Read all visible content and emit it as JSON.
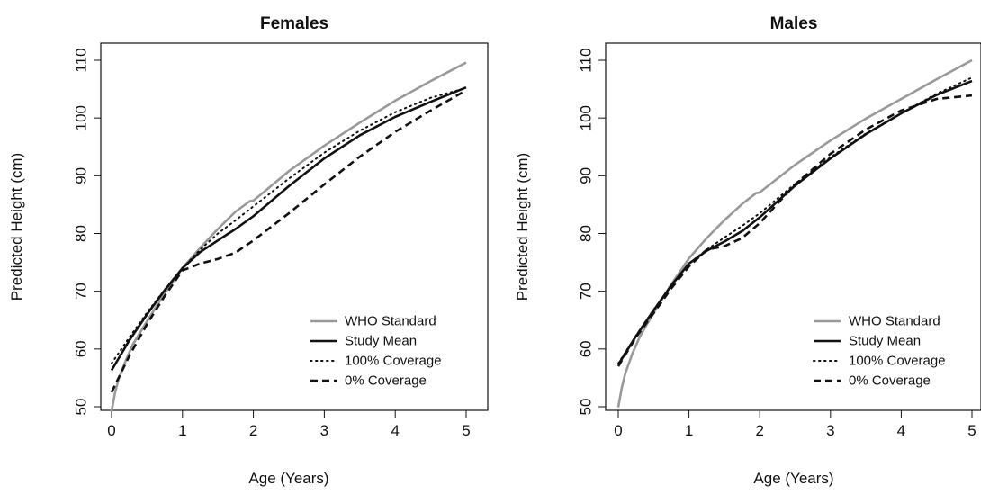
{
  "chart_data": [
    {
      "type": "line",
      "title": "Females",
      "xlabel": "Age (Years)",
      "ylabel": "Predicted Height (cm)",
      "xlim": [
        0,
        5
      ],
      "ylim": [
        48.5,
        111
      ],
      "x_ticks": [
        "0",
        "1",
        "2",
        "3",
        "4",
        "5"
      ],
      "y_ticks": [
        "50",
        "60",
        "70",
        "80",
        "90",
        "100",
        "110"
      ],
      "legend_position": "bottom-right",
      "series": [
        {
          "name": "WHO Standard",
          "color": "#999999",
          "style": "solid",
          "x": [
            0,
            0.05,
            0.1,
            0.2,
            0.3,
            0.5,
            0.75,
            1.0,
            1.25,
            1.5,
            1.75,
            1.95,
            2.0,
            2.05,
            2.5,
            3.0,
            3.5,
            4.0,
            4.5,
            5.0
          ],
          "y": [
            49.2,
            52.5,
            54.8,
            58.0,
            60.8,
            64.8,
            69.7,
            74.0,
            77.5,
            80.8,
            83.8,
            85.6,
            85.7,
            86.2,
            90.8,
            95.2,
            99.2,
            103.0,
            106.4,
            109.6
          ]
        },
        {
          "name": "Study Mean",
          "color": "#111111",
          "style": "solid",
          "x": [
            0,
            0.25,
            0.5,
            0.75,
            1.0,
            1.25,
            1.5,
            1.75,
            2.0,
            2.5,
            3.0,
            3.5,
            4.0,
            4.5,
            5.0
          ],
          "y": [
            56.3,
            61.5,
            66.0,
            70.2,
            74.0,
            76.8,
            78.8,
            80.8,
            83.0,
            88.2,
            93.0,
            97.0,
            100.2,
            102.8,
            105.3
          ]
        },
        {
          "name": "100% Coverage",
          "color": "#111111",
          "style": "dotted",
          "x": [
            0,
            0.25,
            0.5,
            0.75,
            1.0,
            1.25,
            1.5,
            1.75,
            2.0,
            2.5,
            3.0,
            3.5,
            4.0,
            4.5,
            5.0
          ],
          "y": [
            57.5,
            62.0,
            66.3,
            70.3,
            74.0,
            77.2,
            80.0,
            82.3,
            84.7,
            89.5,
            94.0,
            97.8,
            101.0,
            103.5,
            105.2
          ]
        },
        {
          "name": "0% Coverage",
          "color": "#111111",
          "style": "dashed",
          "x": [
            0,
            0.25,
            0.5,
            0.75,
            1.0,
            1.25,
            1.5,
            1.75,
            2.0,
            2.5,
            3.0,
            3.5,
            4.0,
            4.5,
            5.0
          ],
          "y": [
            52.5,
            58.8,
            64.3,
            69.2,
            73.6,
            74.8,
            75.6,
            76.7,
            78.8,
            83.5,
            88.5,
            93.3,
            97.6,
            101.3,
            104.8
          ]
        }
      ]
    },
    {
      "type": "line",
      "title": "Males",
      "xlabel": "Age (Years)",
      "ylabel": "Predicted Height (cm)",
      "xlim": [
        0,
        5
      ],
      "ylim": [
        48.5,
        111
      ],
      "x_ticks": [
        "0",
        "1",
        "2",
        "3",
        "4",
        "5"
      ],
      "y_ticks": [
        "50",
        "60",
        "70",
        "80",
        "90",
        "100",
        "110"
      ],
      "legend_position": "bottom-right",
      "series": [
        {
          "name": "WHO Standard",
          "color": "#999999",
          "style": "solid",
          "x": [
            0,
            0.05,
            0.1,
            0.2,
            0.3,
            0.5,
            0.75,
            1.0,
            1.25,
            1.5,
            1.75,
            1.95,
            2.0,
            2.05,
            2.5,
            3.0,
            3.5,
            4.0,
            4.5,
            5.0
          ],
          "y": [
            49.9,
            53.3,
            55.8,
            59.2,
            62.0,
            66.3,
            71.2,
            75.7,
            79.2,
            82.3,
            85.1,
            87.0,
            87.1,
            87.6,
            91.9,
            96.1,
            99.9,
            103.3,
            106.7,
            110.0
          ]
        },
        {
          "name": "Study Mean",
          "color": "#111111",
          "style": "solid",
          "x": [
            0,
            0.25,
            0.5,
            0.75,
            1.0,
            1.25,
            1.5,
            1.75,
            2.0,
            2.5,
            3.0,
            3.5,
            4.0,
            4.5,
            5.0
          ],
          "y": [
            57.3,
            62.2,
            66.7,
            71.0,
            74.8,
            77.0,
            78.6,
            80.4,
            82.8,
            88.3,
            93.0,
            97.2,
            100.8,
            104.0,
            106.4
          ]
        },
        {
          "name": "100% Coverage",
          "color": "#111111",
          "style": "dotted",
          "x": [
            0,
            0.25,
            0.5,
            0.75,
            1.0,
            1.25,
            1.5,
            1.75,
            2.0,
            2.5,
            3.0,
            3.5,
            4.0,
            4.5,
            5.0
          ],
          "y": [
            57.5,
            62.3,
            66.8,
            71.0,
            74.8,
            77.2,
            79.3,
            81.3,
            83.5,
            88.6,
            93.2,
            97.3,
            100.8,
            104.2,
            107.0
          ]
        },
        {
          "name": "0% Coverage",
          "color": "#111111",
          "style": "dashed",
          "x": [
            0,
            0.25,
            0.5,
            0.75,
            1.0,
            1.25,
            1.5,
            1.75,
            2.0,
            2.5,
            3.0,
            3.5,
            4.0,
            4.5,
            5.0
          ],
          "y": [
            57.0,
            62.0,
            66.2,
            70.5,
            74.3,
            77.2,
            77.8,
            79.2,
            81.8,
            88.5,
            93.8,
            98.0,
            101.3,
            103.3,
            103.9
          ]
        }
      ]
    }
  ]
}
